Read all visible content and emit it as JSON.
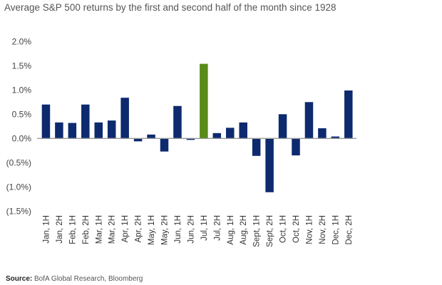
{
  "chart_data": {
    "type": "bar",
    "title": "Average S&P 500 returns by the first and second half of the month since 1928",
    "xlabel": "",
    "ylabel": "",
    "ylim": [
      -1.5,
      2.0
    ],
    "yticks": [
      2.0,
      1.5,
      1.0,
      0.5,
      0.0,
      -0.5,
      -1.0,
      -1.5
    ],
    "ytick_labels": [
      "2.0%",
      "1.5%",
      "1.0%",
      "0.5%",
      "0.0%",
      "(0.5%)",
      "(1.0%)",
      "(1.5%)"
    ],
    "grid": false,
    "categories": [
      "Jan, 1H",
      "Jan, 2H",
      "Feb, 1H",
      "Feb, 2H",
      "Mar, 1H",
      "Mar, 2H",
      "Apr, 1H",
      "Apr, 2H",
      "May, 1H",
      "May, 2H",
      "Jun, 1H",
      "Jun, 2H",
      "Jul, 1H",
      "Jul, 2H",
      "Aug, 1H",
      "Aug, 2H",
      "Sept, 1H",
      "Sept, 2H",
      "Oct, 1H",
      "Oct, 2H",
      "Nov, 1H",
      "Nov, 2H",
      "Dec, 1H",
      "Dec, 2H"
    ],
    "values": [
      0.7,
      0.33,
      0.32,
      0.7,
      0.33,
      0.37,
      0.84,
      -0.06,
      0.08,
      -0.27,
      0.67,
      -0.03,
      1.54,
      0.11,
      0.22,
      0.33,
      -0.36,
      -1.11,
      0.5,
      -0.35,
      0.75,
      0.21,
      0.04,
      0.99
    ],
    "highlight_index": 12,
    "colors": {
      "bar": "#0d2a6e",
      "highlight": "#5a8a1a",
      "axis": "#999999"
    },
    "source_label": "Source:",
    "source_text": "BofA Global Research, Bloomberg"
  }
}
